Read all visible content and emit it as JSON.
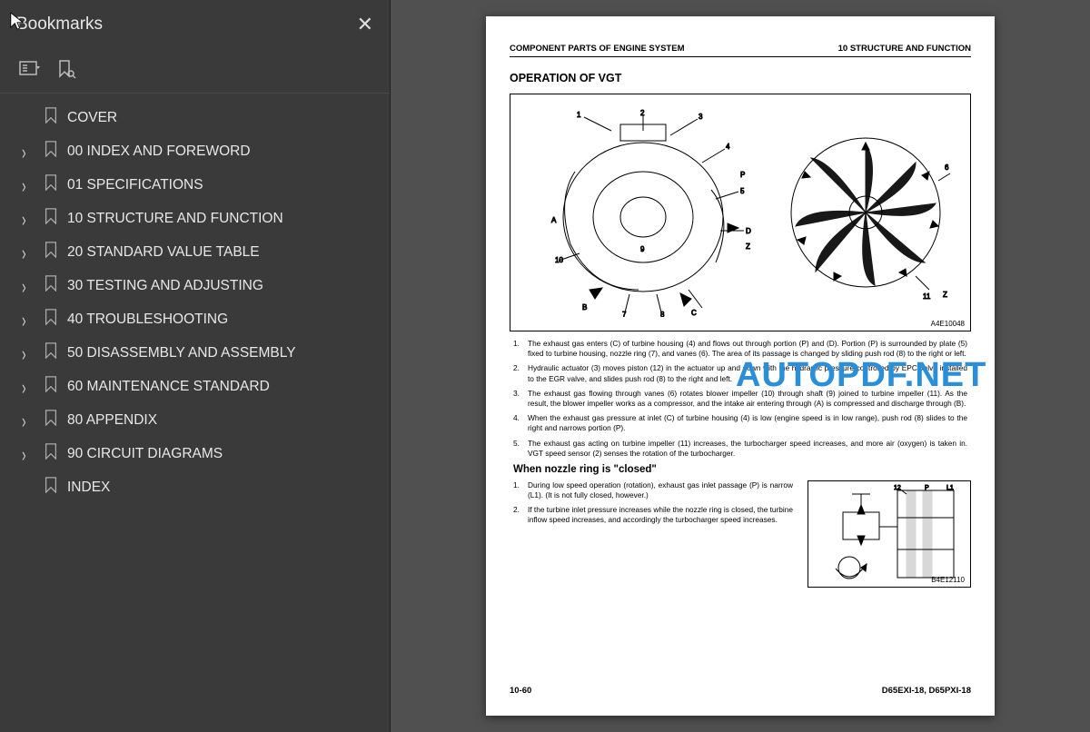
{
  "sidebar": {
    "title": "Bookmarks",
    "items": [
      {
        "label": "COVER",
        "expandable": false
      },
      {
        "label": "00 INDEX AND FOREWORD",
        "expandable": true
      },
      {
        "label": "01 SPECIFICATIONS",
        "expandable": true
      },
      {
        "label": "10 STRUCTURE AND FUNCTION",
        "expandable": true
      },
      {
        "label": "20 STANDARD VALUE TABLE",
        "expandable": true
      },
      {
        "label": "30 TESTING AND ADJUSTING",
        "expandable": true
      },
      {
        "label": "40 TROUBLESHOOTING",
        "expandable": true
      },
      {
        "label": "50 DISASSEMBLY AND ASSEMBLY",
        "expandable": true
      },
      {
        "label": "60 MAINTENANCE STANDARD",
        "expandable": true
      },
      {
        "label": "80 APPENDIX",
        "expandable": true
      },
      {
        "label": "90 CIRCUIT DIAGRAMS",
        "expandable": true
      },
      {
        "label": "INDEX",
        "expandable": false
      }
    ]
  },
  "watermark": "AUTOPDF.NET",
  "page": {
    "header_left": "COMPONENT PARTS OF ENGINE SYSTEM",
    "header_right": "10 STRUCTURE AND FUNCTION",
    "section_title": "OPERATION OF VGT",
    "diagram1_id": "A4E10048",
    "diagram1_labels": [
      "1",
      "2",
      "3",
      "4",
      "5",
      "6",
      "7",
      "8",
      "9",
      "10",
      "11",
      "A",
      "B",
      "C",
      "D",
      "P",
      "Z"
    ],
    "list1": [
      "The exhaust gas enters (C) of turbine housing (4) and flows out through portion (P) and (D). Portion (P) is surrounded by plate (5) fixed to turbine housing, nozzle ring (7), and vanes (6). The area of its passage is changed by sliding push rod (8) to the right or left.",
      "Hydraulic actuator (3) moves piston (12) in the actuator up and down with the hydraulic pressure controlled by EPC valve installed to the EGR valve, and slides push rod (8) to the right and left.",
      "The exhaust gas flowing through vanes (6) rotates blower impeller (10) through shaft (9) joined to turbine impeller (11). As the result, the blower impeller works as a compressor, and the intake air entering through (A) is compressed and discharge through (B).",
      "When the exhaust gas pressure at inlet (C) of turbine housing (4) is low (engine speed is in low range), push rod (8) slides to the right and narrows portion (P).",
      "The exhaust gas acting on turbine impeller (11) increases, the turbocharger speed increases, and more air (oxygen) is taken in. VGT speed sensor (2) senses the rotation of the turbocharger."
    ],
    "subhead": "When nozzle ring is \"closed\"",
    "list2": [
      "During low speed operation (rotation), exhaust gas inlet passage (P) is narrow (L1). (It is not fully closed, however.)",
      "If the turbine inlet pressure increases while the nozzle ring is closed, the turbine inflow speed increases, and accordingly the turbocharger speed increases."
    ],
    "diagram2_id": "B4E12110",
    "diagram2_labels": [
      "12",
      "P",
      "L1"
    ],
    "footer_left": "10-60",
    "footer_right": "D65EXI-18, D65PXI-18"
  }
}
